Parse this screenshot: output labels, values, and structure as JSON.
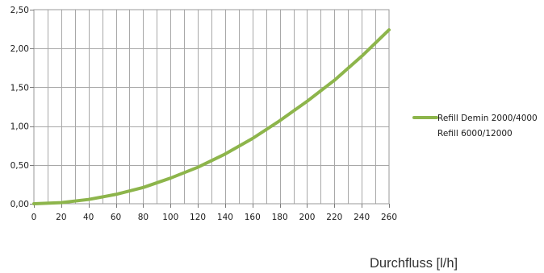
{
  "chart_data": {
    "type": "line",
    "title": "",
    "xlabel": "Durchfluss [l/h]",
    "ylabel": "",
    "xlim": [
      0,
      260
    ],
    "ylim": [
      0,
      2.5
    ],
    "x_ticks": [
      "0",
      "20",
      "40",
      "60",
      "80",
      "100",
      "120",
      "140",
      "160",
      "180",
      "200",
      "220",
      "240",
      "260"
    ],
    "y_ticks": [
      "0,00",
      "0,50",
      "1,00",
      "1,50",
      "2,00",
      "2,50"
    ],
    "grid": true,
    "legend_position": "right",
    "series": [
      {
        "name": "Refill Demin 2000/4000",
        "color": "#8db54b",
        "x": [
          0,
          20,
          40,
          60,
          80,
          100,
          120,
          140,
          160,
          180,
          200,
          220,
          240,
          260
        ],
        "y": [
          0.0,
          0.015,
          0.055,
          0.12,
          0.21,
          0.33,
          0.47,
          0.64,
          0.84,
          1.07,
          1.32,
          1.59,
          1.9,
          2.24
        ]
      }
    ],
    "legend_extra_labels": [
      "Refill 6000/12000"
    ]
  }
}
